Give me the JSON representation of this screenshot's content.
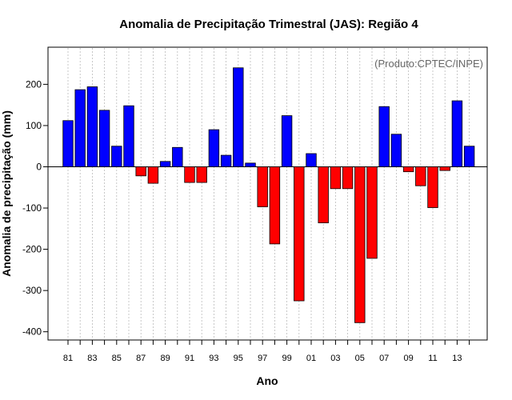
{
  "chart_data": {
    "type": "bar",
    "title": "Anomalia de Precipitação Trimestral (JAS): Região 4",
    "xlabel": "Ano",
    "ylabel": "Anomalia de precipitação (mm)",
    "credit": "(Produto:CPTEC/INPE)",
    "ylim": [
      -420,
      290
    ],
    "yticks": [
      -400,
      -300,
      -200,
      -100,
      0,
      100,
      200
    ],
    "grid": "vertical-dotted",
    "colors": {
      "positive": "#0000FF",
      "negative": "#FF0000",
      "grid": "#BBBBBB"
    },
    "categories": [
      "81",
      "82",
      "83",
      "84",
      "85",
      "86",
      "87",
      "88",
      "89",
      "90",
      "91",
      "92",
      "93",
      "94",
      "95",
      "96",
      "97",
      "98",
      "99",
      "00",
      "01",
      "02",
      "03",
      "04",
      "05",
      "06",
      "07",
      "08",
      "09",
      "10",
      "11",
      "12",
      "13",
      "14"
    ],
    "xtick_labels": [
      "81",
      "83",
      "85",
      "87",
      "89",
      "91",
      "93",
      "95",
      "97",
      "99",
      "01",
      "03",
      "05",
      "07",
      "09",
      "11",
      "13"
    ],
    "values": [
      112,
      187,
      194,
      137,
      50,
      148,
      -22,
      -40,
      13,
      47,
      -38,
      -38,
      90,
      28,
      240,
      9,
      -97,
      -187,
      124,
      -325,
      32,
      -136,
      -53,
      -53,
      -378,
      -222,
      146,
      79,
      -12,
      -46,
      -99,
      -9,
      160,
      50
    ]
  }
}
